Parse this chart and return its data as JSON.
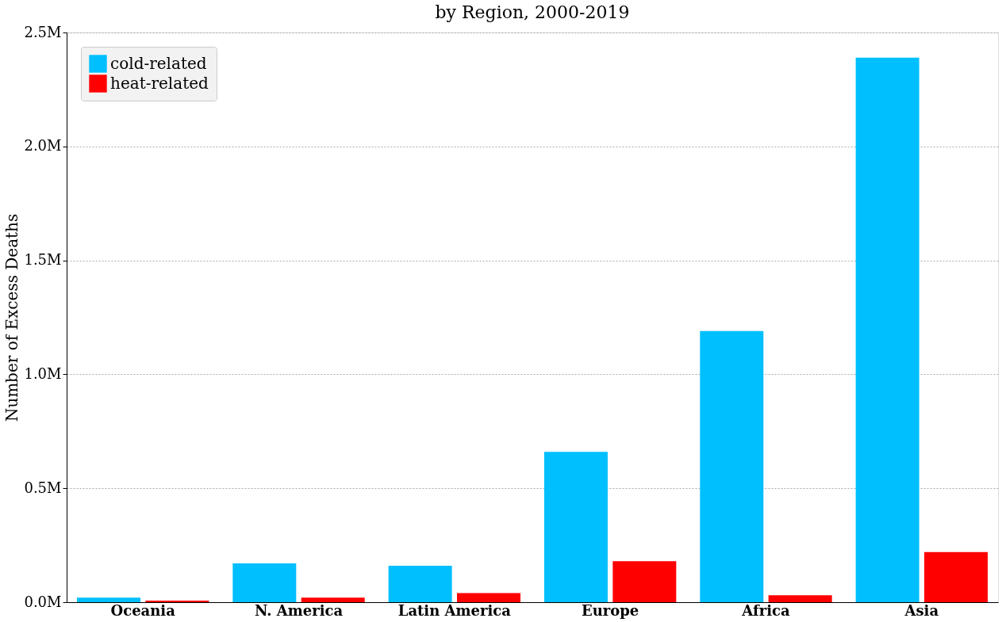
{
  "chart_data": {
    "type": "bar",
    "title": "by Region, 2000-2019",
    "ylabel": "Number of Excess Deaths",
    "categories": [
      "Oceania",
      "N. America",
      "Latin America",
      "Europe",
      "Africa",
      "Asia"
    ],
    "series": [
      {
        "name": "cold-related",
        "color": "#00bfff",
        "values": [
          0.02,
          0.17,
          0.16,
          0.66,
          1.19,
          2.39
        ]
      },
      {
        "name": "heat-related",
        "color": "#ff0000",
        "values": [
          0.007,
          0.02,
          0.04,
          0.18,
          0.03,
          0.22
        ]
      }
    ],
    "ylim": [
      0,
      2.5
    ],
    "yticks": [
      {
        "value": 0,
        "label": "0.0M"
      },
      {
        "value": 0.5,
        "label": "0.5M"
      },
      {
        "value": 1,
        "label": "1.0M"
      },
      {
        "value": 1.5,
        "label": "1.5M"
      },
      {
        "value": 2,
        "label": "2.0M"
      },
      {
        "value": 2.5,
        "label": "2.5M"
      }
    ],
    "grid": "y",
    "legend": "top left"
  }
}
